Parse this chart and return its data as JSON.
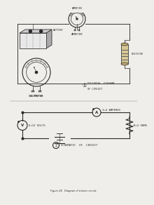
{
  "bg_color": "#f0eeea",
  "line_color": "#2a2a2a",
  "title_text": "Figure 28.  Diagram of a basic circuit.",
  "label1_line1": "PICTORIAL  DIAGRAM",
  "label1_line2": "OF CIRCUIT",
  "label2": "SCHEMATIC  OF  CIRCUIT",
  "ammeter_label": "AMMETER",
  "voltmeter_label": "VOLTMETER",
  "battery_label": "BATTERY",
  "resistor_label": "RESISTOR",
  "current_label": "I=4 AMPERES",
  "voltage_label": "E=12 VOLTS",
  "resistance_label": "R=3 OHMS"
}
